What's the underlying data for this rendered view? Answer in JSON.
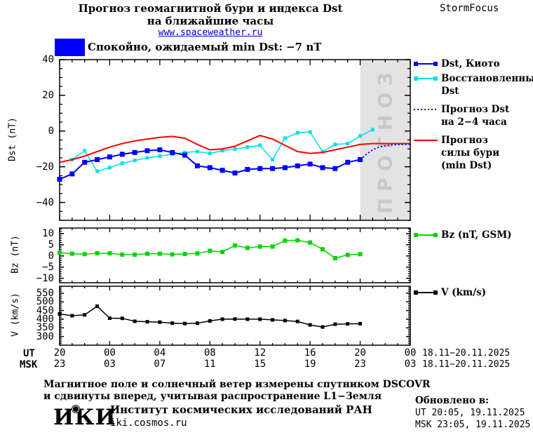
{
  "header": {
    "title_line1": "Прогноз геомагнитной бури и индекса Dst",
    "title_line2": "на ближайшие часы",
    "website": "www.spaceweather.ru",
    "brand": "StormFocus"
  },
  "status": {
    "color": "#0000ff",
    "text": "Спокойно, ожидаемый min Dst: −7 nT"
  },
  "forecast_watermark": "ПРОГНОЗ",
  "colors": {
    "forecast_bg": "#e3e3e3",
    "watermark": "#c8c8c8",
    "axis": "#000000"
  },
  "chart_data": {
    "type": "line",
    "title": "Прогноз геомагнитной бури и индекса Dst на ближайшие часы",
    "x_unit": "hours since 18.11.2025 20:00 UT",
    "x_range_hours": [
      0,
      28
    ],
    "grid": false,
    "legend_position": "right",
    "x_axis": {
      "ut_label": "UT",
      "msk_label": "MSK",
      "tick_hours": [
        0,
        4,
        8,
        12,
        16,
        20,
        24,
        28
      ],
      "ut_ticks": [
        "20",
        "00",
        "04",
        "08",
        "12",
        "16",
        "20",
        "00"
      ],
      "msk_ticks": [
        "23",
        "03",
        "07",
        "11",
        "15",
        "19",
        "23",
        "03"
      ],
      "date_range": "18.11−20.11.2025"
    },
    "panels": [
      {
        "name": "dst",
        "ylabel": "Dst (nT)",
        "ylim": [
          -50,
          40
        ],
        "yticks": [
          40,
          20,
          0,
          -20,
          -40
        ],
        "forecast_region_start_hour": 24,
        "series": [
          {
            "name": "Восстановленный Dst",
            "color": "#00e0e8",
            "style": "solid-squares",
            "marker": 5,
            "width": 1.5,
            "x": [
              1,
              2,
              3,
              4,
              5,
              6,
              7,
              8,
              9,
              10,
              11,
              12,
              13,
              14,
              15,
              16,
              17,
              18,
              19,
              20,
              21,
              22,
              23,
              24,
              25
            ],
            "values": [
              -16,
              -11,
              -22.5,
              -20.5,
              -18,
              -16.5,
              -15,
              -14,
              -13,
              -12,
              -11.5,
              -12.5,
              -11,
              -10,
              -9,
              -8,
              -16,
              -4,
              -1,
              -0.5,
              -11.5,
              -7.5,
              -7,
              -2.8,
              0.8
            ]
          },
          {
            "name": "Dst, Киото",
            "color": "#0000ff",
            "style": "solid-squares",
            "marker": 7,
            "width": 2,
            "x": [
              0,
              1,
              2,
              3,
              4,
              5,
              6,
              7,
              8,
              9,
              10,
              11,
              12,
              13,
              14,
              15,
              16,
              17,
              18,
              19,
              20,
              21,
              22,
              23,
              24
            ],
            "values": [
              -27,
              -24,
              -17.5,
              -16,
              -14.5,
              -13,
              -12,
              -11,
              -10.5,
              -12,
              -13.5,
              -19.5,
              -20.5,
              -22,
              -23.5,
              -21.5,
              -21,
              -21,
              -20.5,
              -19.5,
              -18.5,
              -20.5,
              -21,
              -17.5,
              -16
            ]
          },
          {
            "name": "Прогноз силы бури (min Dst)",
            "color": "#ff0000",
            "style": "solid",
            "marker": 0,
            "width": 2,
            "x": [
              0,
              1,
              2,
              3,
              4,
              5,
              6,
              7,
              8,
              9,
              10,
              11,
              12,
              13,
              14,
              15,
              16,
              17,
              18,
              19,
              20,
              21,
              22,
              23,
              24,
              25,
              26,
              27,
              28
            ],
            "values": [
              -17.5,
              -16,
              -14,
              -11.5,
              -9,
              -7,
              -5.5,
              -4.5,
              -3.5,
              -3,
              -4,
              -7.5,
              -10.5,
              -10,
              -8.5,
              -5.5,
              -2.5,
              -4.5,
              -8,
              -11.5,
              -12.5,
              -12,
              -10.5,
              -9,
              -7.5,
              -7,
              -7,
              -7,
              -7
            ]
          },
          {
            "name": "Прогноз Dst на 2−4 часа",
            "color": "#0000ff",
            "style": "dotted",
            "marker": 0,
            "width": 2,
            "x": [
              24,
              24.5,
              25,
              25.5,
              26,
              26.5,
              27,
              27.5,
              28
            ],
            "values": [
              -16,
              -13,
              -10.5,
              -9,
              -8.2,
              -7.8,
              -7.6,
              -7.5,
              -7.5
            ]
          }
        ]
      },
      {
        "name": "bz",
        "ylabel": "Bz (nT)",
        "ylim": [
          -12,
          12.5
        ],
        "yticks": [
          10,
          5,
          0,
          -5,
          -10
        ],
        "series": [
          {
            "name": "Bz (nT, GSM)",
            "color": "#00d400",
            "style": "solid-squares",
            "marker": 6,
            "width": 1.5,
            "x": [
              0,
              1,
              2,
              3,
              4,
              5,
              6,
              7,
              8,
              9,
              10,
              11,
              12,
              13,
              14,
              15,
              16,
              17,
              18,
              19,
              20,
              21,
              22,
              23,
              24
            ],
            "values": [
              1.5,
              1,
              0.8,
              1.2,
              1.2,
              0.6,
              0.6,
              1,
              1,
              0.7,
              0.9,
              1.1,
              2.3,
              1.8,
              4.7,
              3.6,
              4.2,
              4.2,
              6.9,
              7,
              6,
              3,
              -1,
              0.5,
              0.8
            ]
          }
        ]
      },
      {
        "name": "v",
        "ylabel": "V (km/s)",
        "ylim": [
          250,
          590
        ],
        "yticks": [
          550,
          500,
          450,
          400,
          350,
          300
        ],
        "series": [
          {
            "name": "V (km/s)",
            "color": "#000000",
            "style": "solid-squares",
            "marker": 5,
            "width": 1.5,
            "x": [
              0,
              1,
              2,
              3,
              4,
              5,
              6,
              7,
              8,
              9,
              10,
              11,
              12,
              13,
              14,
              15,
              16,
              17,
              18,
              19,
              20,
              21,
              22,
              23,
              24
            ],
            "values": [
              430,
              420,
              425,
              475,
              406,
              405,
              388,
              385,
              383,
              377,
              375,
              377,
              390,
              400,
              401,
              400,
              400,
              396,
              392,
              387,
              367,
              355,
              371,
              373,
              374
            ]
          }
        ]
      }
    ]
  },
  "legends": {
    "dst": [
      {
        "label": "Dst, Киото",
        "color": "#0000ff",
        "style": "squares"
      },
      {
        "label": "Восстановленный\nDst",
        "color": "#00e0e8",
        "style": "squares"
      },
      {
        "label": "Прогноз Dst\nна 2−4 часа",
        "color": "#0000ff",
        "style": "dotted"
      },
      {
        "label": "Прогноз\nсилы бури\n(min Dst)",
        "color": "#ff0000",
        "style": "solid"
      }
    ],
    "bz": [
      {
        "label": "Bz (nT, GSM)",
        "color": "#00d400",
        "style": "squares"
      }
    ],
    "v": [
      {
        "label": "V (km/s)",
        "color": "#000000",
        "style": "squares"
      }
    ]
  },
  "footer": {
    "note_line1": "Магнитное поле и солнечный ветер измерены спутником DSCOVR",
    "note_line2": "и сдвинуты вперед, учитывая распространение L1−Земля",
    "logo_text": "ИКИ",
    "institute": "Институт космических исследований РАН",
    "website": "iki.cosmos.ru",
    "updated_label": "Обновлено в:",
    "updated_ut": "UT  20:05, 19.11.2025",
    "updated_msk": "MSK 23:05, 19.11.2025"
  }
}
